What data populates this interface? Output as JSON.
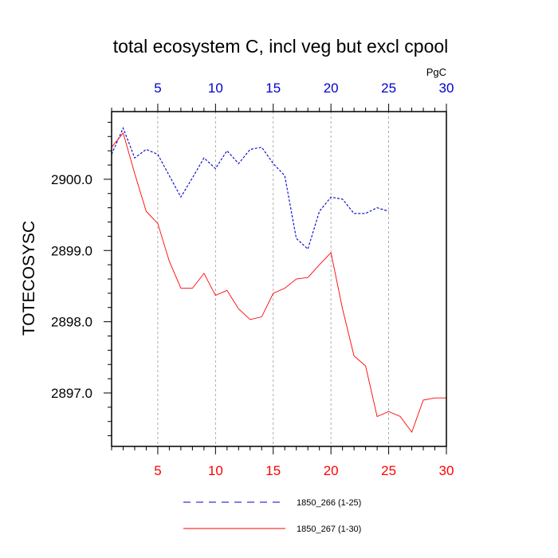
{
  "chart_data": {
    "type": "line",
    "title": "total ecosystem C, incl veg but excl cpool",
    "ylabel": "TOTECOSYSC",
    "unit_label": "PgC",
    "xlim": [
      1,
      30
    ],
    "ylim": [
      2896.25,
      2900.95
    ],
    "x_ticks": [
      5,
      10,
      15,
      20,
      25,
      30
    ],
    "y_ticks": [
      2897.0,
      2898.0,
      2899.0,
      2900.0
    ],
    "y_tick_labels": [
      "2897.0",
      "2898.0",
      "2899.0",
      "2900.0"
    ],
    "top_tick_color": "#0000cc",
    "bottom_tick_color": "#ff0000",
    "grid": "vertical dashed at major x ticks",
    "legend_position": "bottom",
    "series": [
      {
        "name": "1850_266 (1-25)",
        "color": "#0000cc",
        "dash": "dashed",
        "x": [
          1,
          2,
          3,
          4,
          5,
          6,
          7,
          8,
          9,
          10,
          11,
          12,
          13,
          14,
          15,
          16,
          17,
          18,
          19,
          20,
          21,
          22,
          23,
          24,
          25
        ],
        "values": [
          2900.35,
          2900.72,
          2900.3,
          2900.42,
          2900.35,
          2900.05,
          2899.75,
          2900.02,
          2900.3,
          2900.15,
          2900.4,
          2900.22,
          2900.42,
          2900.45,
          2900.22,
          2900.05,
          2899.17,
          2899.02,
          2899.55,
          2899.75,
          2899.72,
          2899.52,
          2899.52,
          2899.6,
          2899.55
        ]
      },
      {
        "name": "1850_267 (1-30)",
        "color": "#ff0000",
        "dash": "solid",
        "x": [
          1,
          2,
          3,
          4,
          5,
          6,
          7,
          8,
          9,
          10,
          11,
          12,
          13,
          14,
          15,
          16,
          17,
          18,
          19,
          20,
          21,
          22,
          23,
          24,
          25,
          26,
          27,
          28,
          29,
          30
        ],
        "values": [
          2900.45,
          2900.65,
          2900.08,
          2899.55,
          2899.38,
          2898.85,
          2898.47,
          2898.47,
          2898.68,
          2898.37,
          2898.44,
          2898.18,
          2898.03,
          2898.07,
          2898.4,
          2898.47,
          2898.6,
          2898.62,
          2898.8,
          2898.97,
          2898.18,
          2897.52,
          2897.38,
          2896.67,
          2896.74,
          2896.67,
          2896.45,
          2896.9,
          2896.93,
          2896.93
        ]
      }
    ]
  }
}
